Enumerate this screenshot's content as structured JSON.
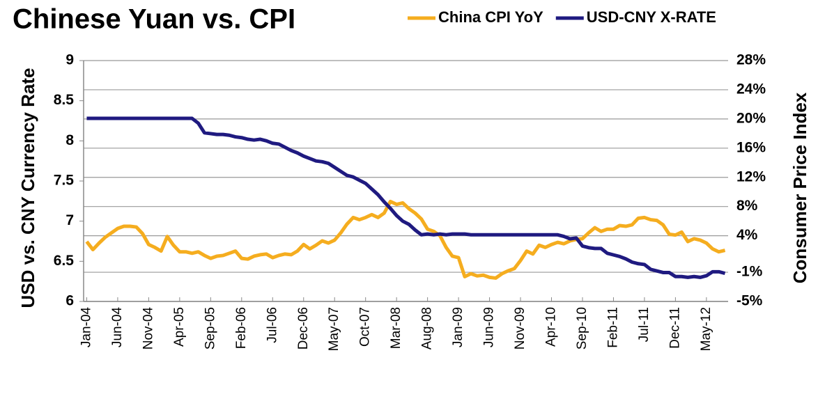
{
  "chart_data": {
    "type": "line",
    "title": "Chinese Yuan vs. CPI",
    "y_label": "USD vs. CNY Currency Rate",
    "y2_label": "Consumer Price Index",
    "categories": [
      "Jan-04",
      null,
      null,
      null,
      null,
      "Jun-04",
      null,
      null,
      null,
      null,
      "Nov-04",
      null,
      null,
      null,
      null,
      "Apr-05",
      null,
      null,
      null,
      null,
      "Sep-05",
      null,
      null,
      null,
      null,
      "Feb-06",
      null,
      null,
      null,
      null,
      "Jul-06",
      null,
      null,
      null,
      null,
      "Dec-06",
      null,
      null,
      null,
      null,
      "May-07",
      null,
      null,
      null,
      null,
      "Oct-07",
      null,
      null,
      null,
      null,
      "Mar-08",
      null,
      null,
      null,
      null,
      "Aug-08",
      null,
      null,
      null,
      null,
      "Jan-09",
      null,
      null,
      null,
      null,
      "Jun-09",
      null,
      null,
      null,
      null,
      "Nov-09",
      null,
      null,
      null,
      null,
      "Apr-10",
      null,
      null,
      null,
      null,
      "Sep-10",
      null,
      null,
      null,
      null,
      "Feb-11",
      null,
      null,
      null,
      null,
      "Jul-11",
      null,
      null,
      null,
      null,
      "Dec-11",
      null,
      null,
      null,
      null,
      "May-12",
      null,
      null,
      null
    ],
    "series": [
      {
        "name": "China CPI YoY",
        "color": "#f5ad1f",
        "axis": "y2",
        "values": [
          3.2,
          2.1,
          3.0,
          3.8,
          4.4,
          5.0,
          5.3,
          5.3,
          5.2,
          4.3,
          2.8,
          2.4,
          1.9,
          3.9,
          2.7,
          1.8,
          1.8,
          1.6,
          1.8,
          1.3,
          0.9,
          1.2,
          1.3,
          1.6,
          1.9,
          0.9,
          0.8,
          1.2,
          1.4,
          1.5,
          1.0,
          1.3,
          1.5,
          1.4,
          1.9,
          2.8,
          2.2,
          2.7,
          3.3,
          3.0,
          3.4,
          4.4,
          5.6,
          6.5,
          6.2,
          6.5,
          6.9,
          6.5,
          7.1,
          8.7,
          8.3,
          8.5,
          7.7,
          7.1,
          6.3,
          4.9,
          4.6,
          4.0,
          2.4,
          1.2,
          1.0,
          -1.6,
          -1.2,
          -1.5,
          -1.4,
          -1.7,
          -1.8,
          -1.2,
          -0.8,
          -0.5,
          0.6,
          1.9,
          1.5,
          2.7,
          2.4,
          2.8,
          3.1,
          2.9,
          3.3,
          3.5,
          3.6,
          4.4,
          5.1,
          4.6,
          4.9,
          4.9,
          5.4,
          5.3,
          5.5,
          6.4,
          6.5,
          6.2,
          6.1,
          5.5,
          4.2,
          4.1,
          4.5,
          3.2,
          3.6,
          3.4,
          3.0,
          2.2,
          1.8,
          2.0
        ]
      },
      {
        "name": "USD-CNY X-RATE",
        "color": "#1f1a80",
        "values": [
          8.28,
          8.28,
          8.28,
          8.28,
          8.28,
          8.28,
          8.28,
          8.28,
          8.28,
          8.28,
          8.28,
          8.28,
          8.28,
          8.28,
          8.28,
          8.28,
          8.28,
          8.28,
          8.22,
          8.1,
          8.09,
          8.08,
          8.08,
          8.07,
          8.05,
          8.04,
          8.02,
          8.01,
          8.02,
          8.0,
          7.97,
          7.96,
          7.92,
          7.88,
          7.85,
          7.81,
          7.78,
          7.75,
          7.74,
          7.72,
          7.67,
          7.62,
          7.57,
          7.55,
          7.51,
          7.47,
          7.4,
          7.33,
          7.24,
          7.16,
          7.07,
          7.0,
          6.96,
          6.89,
          6.83,
          6.84,
          6.83,
          6.84,
          6.83,
          6.84,
          6.84,
          6.84,
          6.83,
          6.83,
          6.83,
          6.83,
          6.83,
          6.83,
          6.83,
          6.83,
          6.83,
          6.83,
          6.83,
          6.83,
          6.83,
          6.83,
          6.83,
          6.81,
          6.78,
          6.79,
          6.69,
          6.67,
          6.66,
          6.66,
          6.6,
          6.58,
          6.56,
          6.53,
          6.49,
          6.47,
          6.46,
          6.4,
          6.38,
          6.36,
          6.36,
          6.31,
          6.31,
          6.3,
          6.31,
          6.3,
          6.32,
          6.37,
          6.37,
          6.35
        ]
      }
    ],
    "ylim": [
      6,
      9
    ],
    "yticks": [
      6,
      6.5,
      7,
      7.5,
      8,
      8.5,
      9
    ],
    "y2lim": [
      -5,
      28
    ],
    "y2ticks": [
      {
        "value": 28,
        "label": "28%"
      },
      {
        "value": 24,
        "label": "24%"
      },
      {
        "value": 20,
        "label": "20%"
      },
      {
        "value": 16,
        "label": "16%"
      },
      {
        "value": 12,
        "label": "12%"
      },
      {
        "value": 8,
        "label": "8%"
      },
      {
        "value": 4,
        "label": "4%"
      },
      {
        "value": -1,
        "label": "-1%"
      },
      {
        "value": -5,
        "label": "-5%"
      }
    ],
    "grid": true,
    "legend": "top-right"
  }
}
